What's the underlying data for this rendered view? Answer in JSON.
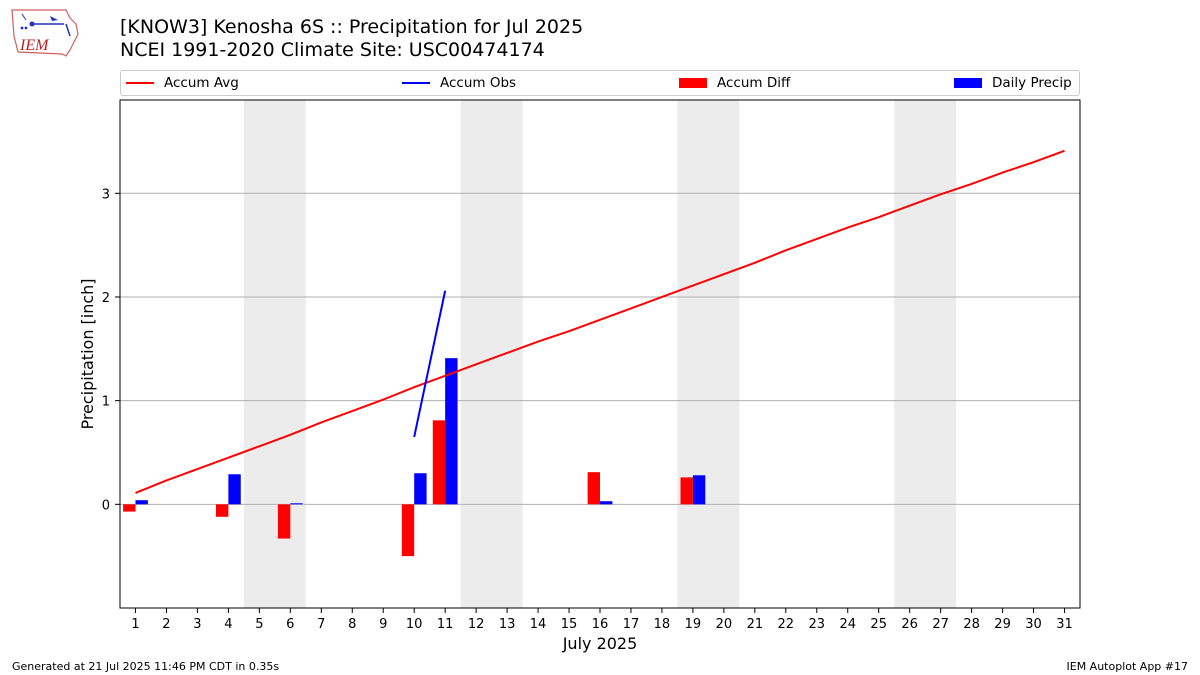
{
  "logo": {
    "text": "IEM"
  },
  "title_line1": "[KNOW3] Kenosha 6S :: Precipitation for Jul 2025",
  "title_line2": "NCEI 1991-2020 Climate Site: USC00474174",
  "legend_items": [
    {
      "label": "Accum Avg",
      "kind": "line",
      "color": "#ff0000"
    },
    {
      "label": "Accum Obs",
      "kind": "line",
      "color": "#0000ff"
    },
    {
      "label": "Accum Diff",
      "kind": "box",
      "color": "#ff0000"
    },
    {
      "label": "Daily Precip",
      "kind": "box",
      "color": "#0000ff"
    }
  ],
  "footer_left": "Generated at 21 Jul 2025 11:46 PM CDT in 0.35s",
  "footer_right": "IEM Autoplot App #17",
  "chart_data": {
    "type": "bar",
    "xlabel": "July 2025",
    "ylabel": "Precipitation [inch]",
    "xlim": [
      0.5,
      31.5
    ],
    "ylim": [
      -1.0,
      3.9
    ],
    "yticks": [
      0,
      1,
      2,
      3
    ],
    "grid": "horizontal",
    "legend_position": "top",
    "x": [
      1,
      2,
      3,
      4,
      5,
      6,
      7,
      8,
      9,
      10,
      11,
      12,
      13,
      14,
      15,
      16,
      17,
      18,
      19,
      20,
      21,
      22,
      23,
      24,
      25,
      26,
      27,
      28,
      29,
      30,
      31
    ],
    "shaded_weekends": [
      [
        5,
        6
      ],
      [
        12,
        13
      ],
      [
        19,
        20
      ],
      [
        26,
        27
      ]
    ],
    "series": [
      {
        "name": "Accum Avg",
        "kind": "line",
        "color": "#ff0000",
        "x": [
          1,
          2,
          3,
          4,
          5,
          6,
          7,
          8,
          9,
          10,
          11,
          12,
          13,
          14,
          15,
          16,
          17,
          18,
          19,
          20,
          21,
          22,
          23,
          24,
          25,
          26,
          27,
          28,
          29,
          30,
          31
        ],
        "values": [
          0.11,
          0.23,
          0.34,
          0.45,
          0.56,
          0.67,
          0.79,
          0.9,
          1.01,
          1.13,
          1.24,
          1.35,
          1.46,
          1.57,
          1.67,
          1.78,
          1.89,
          2.0,
          2.11,
          2.22,
          2.33,
          2.45,
          2.56,
          2.67,
          2.77,
          2.88,
          2.99,
          3.09,
          3.2,
          3.3,
          3.41
        ]
      },
      {
        "name": "Accum Obs",
        "kind": "line",
        "color": "#0000ff",
        "x": [
          10,
          11
        ],
        "values": [
          0.65,
          2.06
        ]
      },
      {
        "name": "Accum Diff",
        "kind": "bar",
        "color": "#ff0000",
        "x": [
          1,
          4,
          6,
          10,
          11,
          16,
          19
        ],
        "values": [
          -0.07,
          -0.12,
          -0.33,
          -0.5,
          0.81,
          0.31,
          0.26
        ]
      },
      {
        "name": "Daily Precip",
        "kind": "bar",
        "color": "#0000ff",
        "x": [
          1,
          4,
          6,
          10,
          11,
          16,
          19
        ],
        "values": [
          0.04,
          0.29,
          0.01,
          0.3,
          1.41,
          0.03,
          0.28
        ]
      }
    ]
  }
}
